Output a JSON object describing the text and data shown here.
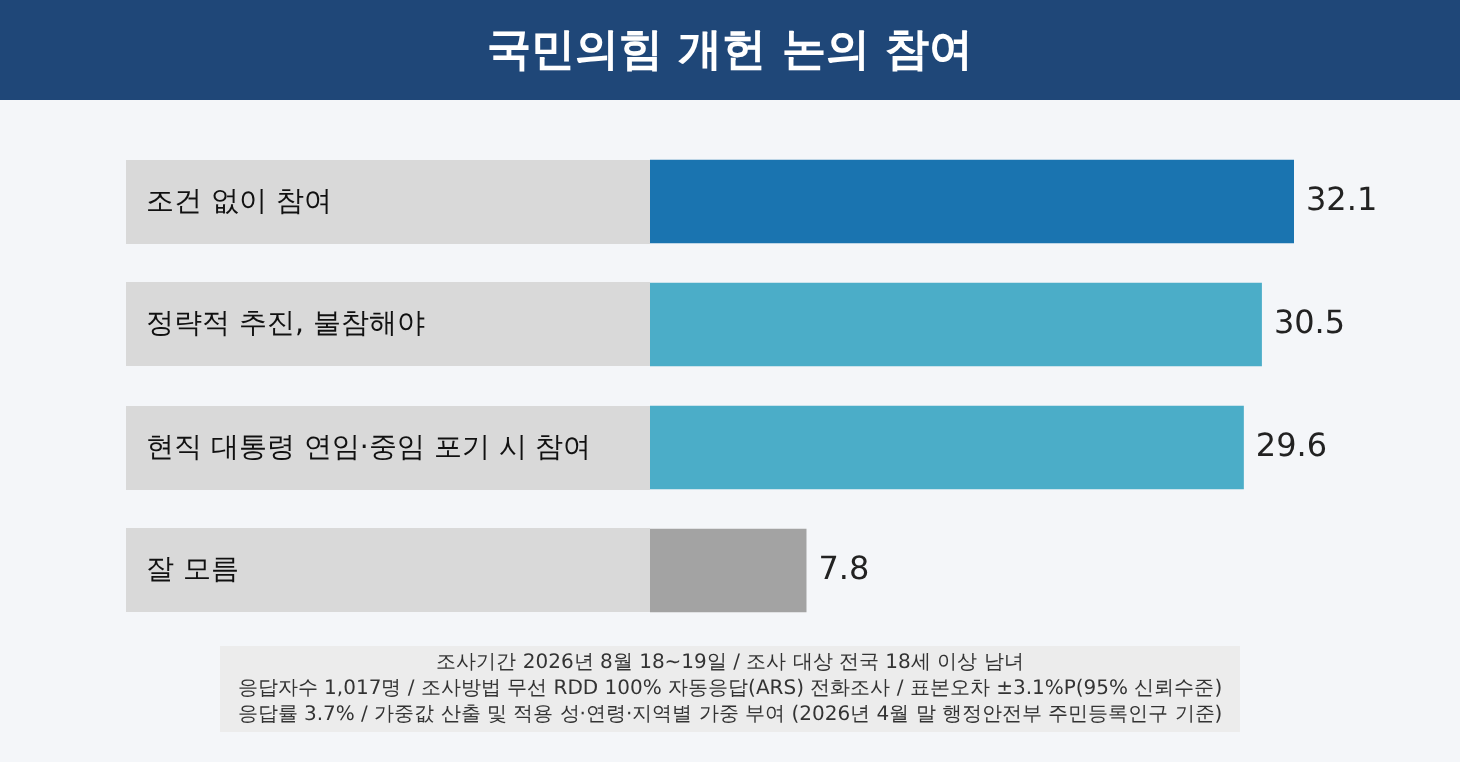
{
  "chart_data": {
    "type": "bar",
    "orientation": "horizontal",
    "tick_labels": false,
    "title": "국민의힘 개헌 논의 참여",
    "categories": [
      "조건 없이 참여",
      "정략적 추진, 불참해야",
      "현직 대통령 연임·중임 포기 시 참여",
      "잘 모름"
    ],
    "values": [
      32.1,
      30.5,
      29.6,
      7.8
    ],
    "colors": [
      "#1a74b0",
      "#4badc8",
      "#4badc8",
      "#a3a3a3"
    ],
    "data_labels": true,
    "annotations": [
      "조사기간 2026년 8월 18~19일 / 조사 대상 전국 18세 이상 남녀",
      "응답자수 1,017명 / 조사방법 무선 RDD 100% 자동응답(ARS) 전화조사 / 표본오차 ±3.1%P(95% 신뢰수준)",
      "응답률 3.7% / 가중값 산출 및 적용 성·연령·지역별 가중 부여 (2026년 4월 말 행정안전부 주민등록인구 기준)"
    ]
  }
}
